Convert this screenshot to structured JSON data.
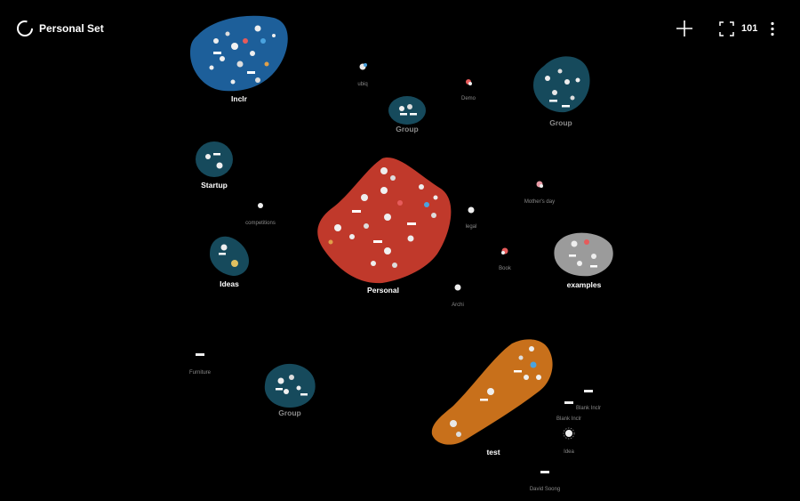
{
  "header": {
    "title": "Personal Set",
    "count": "101",
    "add_icon": "plus-icon",
    "fit_icon": "frame-corners-icon",
    "more_icon": "vertical-dots-icon"
  },
  "colors": {
    "blue": "#1d5f9a",
    "teal": "#164a5c",
    "red": "#c0392b",
    "gray": "#9b9b9b",
    "orange": "#c8701b"
  },
  "clusters": {
    "inclr": "Inclr",
    "group_top_mid": "Group",
    "group_top_right": "Group",
    "startup": "Startup",
    "ideas": "Ideas",
    "personal": "Personal",
    "examples": "examples",
    "group_bottom": "Group",
    "test": "test"
  },
  "nodes": {
    "ubiq": "ubiq",
    "demo": "Demo",
    "competitions": "competitions",
    "legal": "legal",
    "mothers_day": "Mother's day",
    "book": "Book",
    "archi": "Archi",
    "furniture": "Furniture",
    "blank_inclr_1": "Blank Inclr",
    "blank_inclr_2": "Blank Inclr",
    "idea": "Idea",
    "david_soong": "David Soong"
  }
}
